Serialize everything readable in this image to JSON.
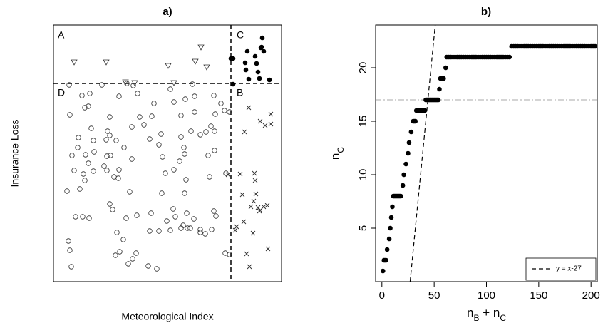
{
  "chart_data": [
    {
      "type": "scatter",
      "title": "a)",
      "xlabel": "Meteorological Index",
      "ylabel": "Insurance Loss",
      "xlim": [
        0,
        320
      ],
      "ylim": [
        0,
        360
      ],
      "vline": 249,
      "hline": 278,
      "regions": [
        "A",
        "B",
        "C",
        "D"
      ],
      "series": [
        {
          "marker": "circle",
          "color": "#333333",
          "x": [
            22,
            68,
            103,
            112,
            195,
            40,
            51,
            118,
            164,
            225,
            198,
            92,
            44,
            49,
            141,
            169,
            185,
            235,
            240,
            247,
            79,
            121,
            138,
            179,
            198,
            227,
            221,
            23,
            53,
            76,
            79,
            110,
            127,
            214,
            206,
            193,
            35,
            34,
            56,
            57,
            74,
            75,
            88,
            99,
            135,
            151,
            179,
            183,
            226,
            26,
            29,
            45,
            49,
            71,
            80,
            92,
            110,
            148,
            153,
            177,
            184,
            217,
            226,
            42,
            56,
            75,
            85,
            157,
            169,
            186,
            219,
            242,
            19,
            37,
            44,
            91,
            107,
            152,
            184,
            79,
            83,
            117,
            168,
            171,
            137,
            187,
            197,
            225,
            228,
            31,
            41,
            50,
            102,
            159,
            148,
            179,
            182,
            164,
            188,
            192,
            206,
            222,
            89,
            98,
            135,
            21,
            23,
            25,
            87,
            105,
            116,
            133,
            145,
            93,
            111,
            241,
            247,
            206,
            213
          ],
          "y": [
            276,
            276,
            278,
            275,
            277,
            261,
            264,
            264,
            270,
            261,
            260,
            260,
            244,
            246,
            250,
            252,
            256,
            250,
            240,
            238,
            231,
            231,
            232,
            233,
            238,
            235,
            218,
            234,
            215,
            211,
            205,
            217,
            220,
            210,
            206,
            211,
            202,
            188,
            198,
            182,
            199,
            176,
            198,
            188,
            200,
            207,
            203,
            188,
            211,
            177,
            156,
            178,
            166,
            162,
            177,
            157,
            172,
            192,
            175,
            169,
            179,
            177,
            184,
            151,
            155,
            156,
            147,
            152,
            157,
            143,
            147,
            152,
            127,
            130,
            142,
            145,
            126,
            124,
            124,
            109,
            101,
            93,
            102,
            91,
            96,
            96,
            88,
            99,
            92,
            91,
            91,
            89,
            89,
            85,
            71,
            75,
            79,
            72,
            75,
            75,
            73,
            73,
            69,
            59,
            71,
            57,
            44,
            21,
            37,
            25,
            40,
            22,
            18,
            42,
            32,
            40,
            38,
            69,
            67
          ]
        },
        {
          "marker": "triangle",
          "color": "#333333",
          "x": [
            29,
            74,
            101,
            114,
            161,
            199,
            207,
            215,
            169
          ],
          "y": [
            308,
            308,
            280,
            279,
            303,
            309,
            329,
            301,
            279
          ]
        },
        {
          "marker": "dot",
          "color": "#000000",
          "x": [
            249,
            252,
            293,
            272,
            283,
            291,
            269,
            285,
            292,
            295,
            270,
            287,
            303,
            252,
            274,
            289
          ],
          "y": [
            313,
            313,
            342,
            323,
            316,
            328,
            307,
            306,
            329,
            323,
            297,
            294,
            283,
            277,
            284,
            285
          ]
        },
        {
          "marker": "cross",
          "color": "#333333",
          "x": [
            274,
            290,
            297,
            305,
            305,
            268,
            245,
            262,
            282,
            283,
            265,
            284,
            281,
            277,
            287,
            295,
            300,
            290,
            257,
            267,
            280,
            301,
            271,
            275,
            289,
            255
          ],
          "y": [
            244,
            225,
            219,
            235,
            221,
            210,
            150,
            151,
            152,
            142,
            122,
            123,
            113,
            105,
            104,
            105,
            107,
            100,
            77,
            84,
            68,
            46,
            39,
            21,
            99,
            72
          ]
        }
      ]
    },
    {
      "type": "scatter",
      "title": "b)",
      "xlabel": [
        {
          "text": "n"
        },
        {
          "text": "B",
          "sub": true
        },
        {
          "text": " + n"
        },
        {
          "text": "C",
          "sub": true
        }
      ],
      "ylabel": [
        {
          "text": "n"
        },
        {
          "text": "C",
          "sub": true
        }
      ],
      "xlim": [
        -6,
        206
      ],
      "ylim": [
        0,
        24
      ],
      "xticks": [
        0,
        50,
        100,
        150,
        200
      ],
      "yticks": [
        5,
        10,
        15,
        20
      ],
      "hline": 17,
      "reference_line": {
        "label": "y = x-27",
        "slope": 1,
        "intercept": -27
      },
      "series": [
        {
          "marker": "dot",
          "color": "#000000",
          "x": [
            1,
            2,
            3,
            4,
            5,
            7,
            8,
            9,
            10,
            11,
            12,
            13,
            14,
            15,
            16,
            17,
            18,
            20,
            21,
            23,
            25,
            26,
            28,
            30,
            31,
            32,
            33,
            34,
            35,
            36,
            37,
            38,
            39,
            40,
            41,
            42,
            43,
            44,
            45,
            46,
            47,
            48,
            49,
            50,
            51,
            52,
            53,
            54,
            55,
            56,
            57,
            58,
            59,
            61,
            62,
            64,
            66,
            68,
            70,
            72,
            74,
            76,
            78,
            80,
            82,
            84,
            86,
            88,
            90,
            92,
            94,
            96,
            98,
            100,
            102,
            104,
            106,
            108,
            110,
            112,
            114,
            116,
            118,
            120,
            122,
            124,
            126,
            128,
            130,
            132,
            134,
            136,
            138,
            140,
            142,
            144,
            146,
            148,
            150,
            152,
            154,
            156,
            158,
            160,
            162,
            164,
            166,
            168,
            170,
            172,
            174,
            176,
            178,
            180,
            182,
            184,
            186,
            188,
            190,
            192,
            194,
            196,
            198,
            200,
            202,
            204
          ],
          "y": [
            1,
            2,
            2,
            2,
            3,
            4,
            5,
            6,
            7,
            8,
            8,
            8,
            8,
            8,
            8,
            8,
            8,
            9,
            10,
            11,
            12,
            13,
            14,
            15,
            15,
            15,
            16,
            16,
            16,
            16,
            16,
            16,
            16,
            16,
            16,
            17,
            17,
            17,
            17,
            17,
            17,
            17,
            17,
            17,
            17,
            17,
            17,
            17,
            18,
            19,
            19,
            19,
            19,
            20,
            21,
            21,
            21,
            21,
            21,
            21,
            21,
            21,
            21,
            21,
            21,
            21,
            21,
            21,
            21,
            21,
            21,
            21,
            21,
            21,
            21,
            21,
            21,
            21,
            21,
            21,
            21,
            21,
            21,
            21,
            21,
            22,
            22,
            22,
            22,
            22,
            22,
            22,
            22,
            22,
            22,
            22,
            22,
            22,
            22,
            22,
            22,
            22,
            22,
            22,
            22,
            22,
            22,
            22,
            22,
            22,
            22,
            22,
            22,
            22,
            22,
            22,
            22,
            22,
            22,
            22,
            22,
            22,
            22,
            22,
            22,
            22
          ]
        }
      ]
    }
  ]
}
